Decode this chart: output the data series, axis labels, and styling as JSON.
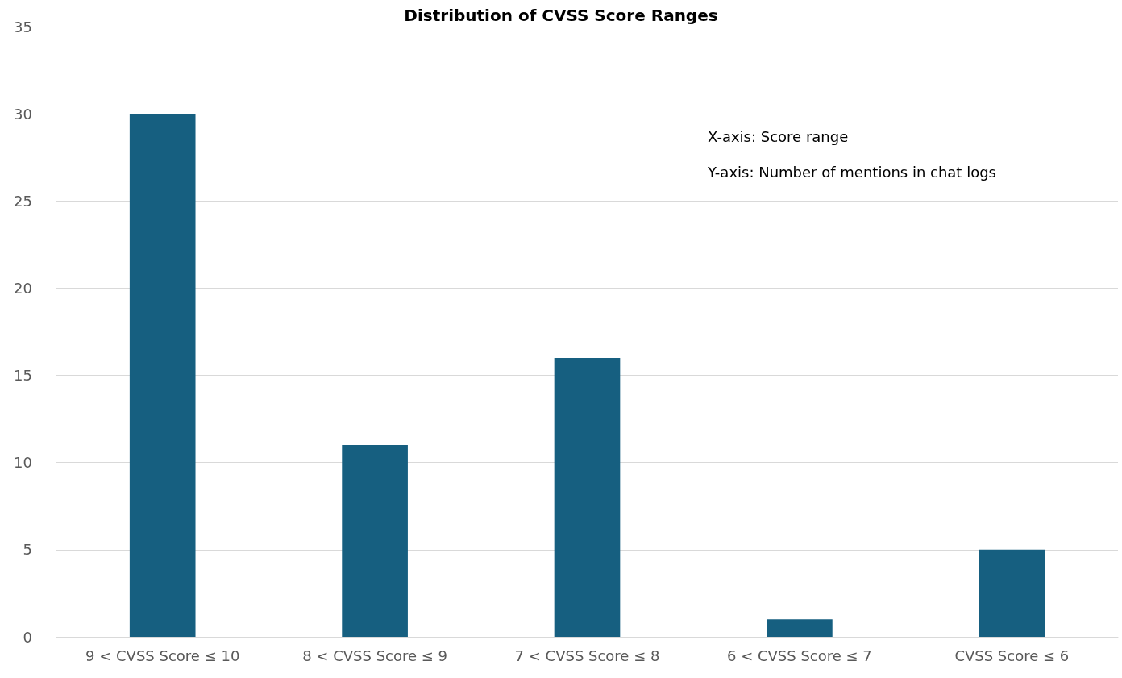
{
  "chart_data": {
    "type": "bar",
    "title": "Distribution of CVSS Score Ranges",
    "categories": [
      "9 < CVSS Score ≤ 10",
      "8 < CVSS Score ≤ 9",
      "7 < CVSS Score ≤ 8",
      "6 < CVSS Score ≤ 7",
      "CVSS Score ≤ 6"
    ],
    "values": [
      30,
      11,
      16,
      1,
      5
    ],
    "color": "#165f80",
    "ylim": [
      0,
      35
    ],
    "yticks": [
      0,
      5,
      10,
      15,
      20,
      25,
      30,
      35
    ],
    "grid": "y",
    "annotations": [
      "X-axis: Score range",
      "Y-axis: Number of mentions in chat logs"
    ]
  }
}
